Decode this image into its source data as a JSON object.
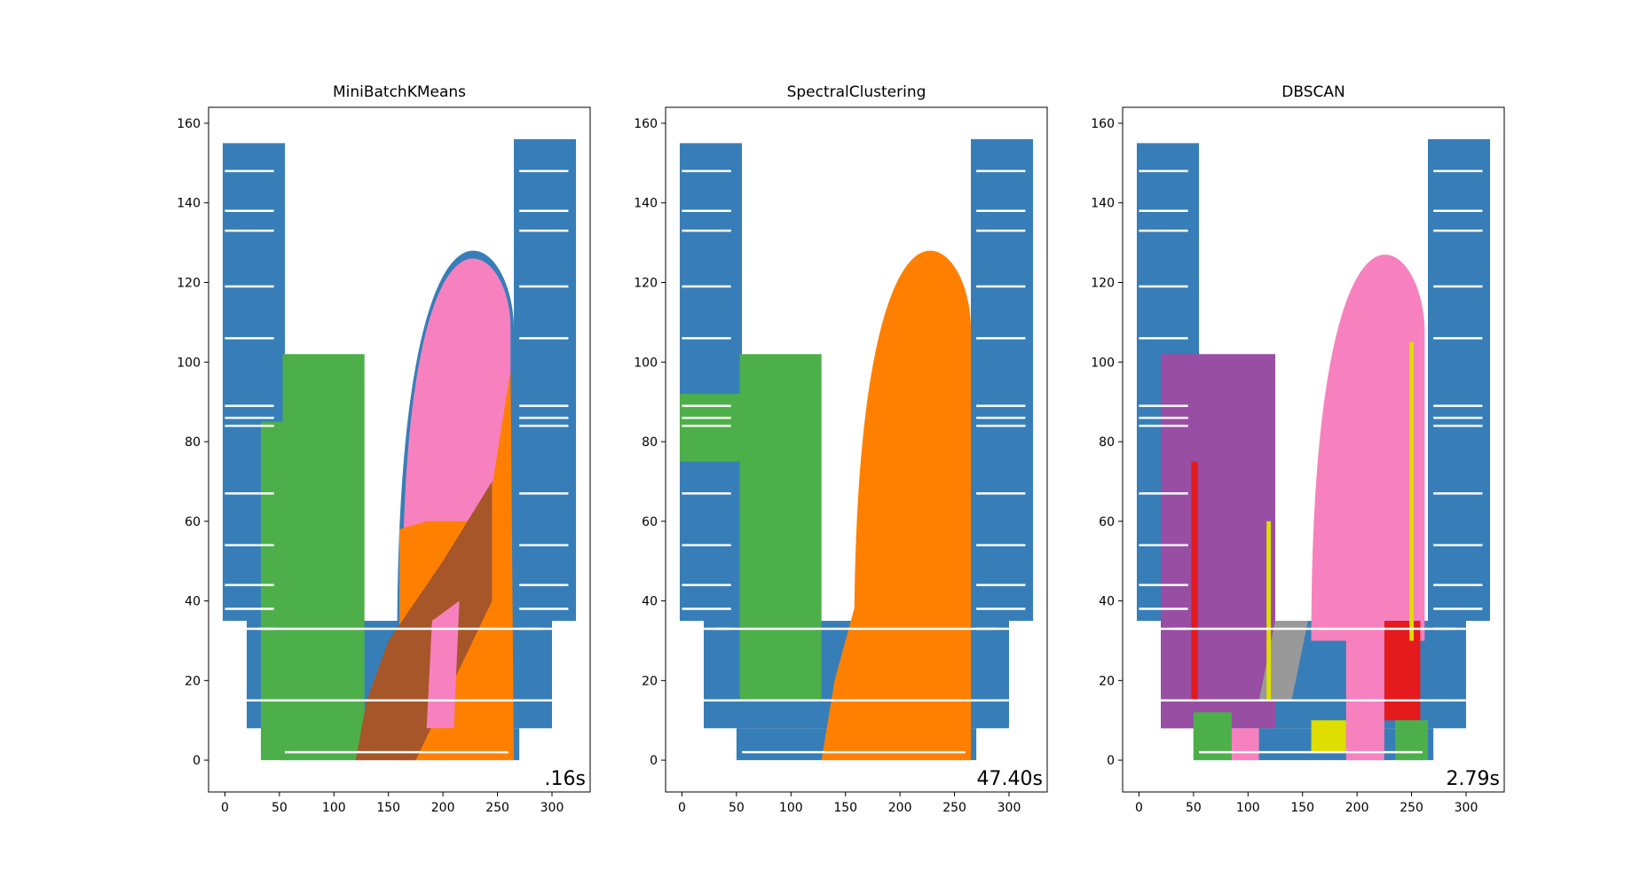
{
  "colors": {
    "blue": "#377eb8",
    "orange": "#ff7f00",
    "green": "#4daf4a",
    "pink": "#f781bf",
    "brown": "#a65628",
    "purple": "#984ea3",
    "gray": "#999999",
    "red": "#e41a1c",
    "yellow": "#dede00",
    "black": "#000000",
    "white": "#ffffff"
  },
  "chart_data": [
    {
      "type": "scatter",
      "title": "MiniBatchKMeans",
      "time_label": ".16s",
      "xlim": [
        -15,
        335
      ],
      "ylim": [
        -8,
        164
      ],
      "x_ticks": [
        0,
        50,
        100,
        150,
        200,
        250,
        300
      ],
      "y_ticks": [
        0,
        20,
        40,
        60,
        80,
        100,
        120,
        140,
        160
      ],
      "regions": [
        {
          "color": "blue",
          "kind": "rect",
          "x": [
            -2,
            55
          ],
          "y": [
            35,
            155
          ]
        },
        {
          "color": "blue",
          "kind": "rect",
          "x": [
            265,
            322
          ],
          "y": [
            35,
            156
          ]
        },
        {
          "color": "blue",
          "kind": "rect",
          "x": [
            20,
            300
          ],
          "y": [
            8,
            35
          ]
        },
        {
          "color": "blue",
          "kind": "rect",
          "x": [
            50,
            270
          ],
          "y": [
            0,
            8
          ]
        },
        {
          "color": "blue",
          "kind": "arch",
          "x": [
            158,
            265
          ],
          "y": [
            30,
            128
          ]
        },
        {
          "color": "green",
          "kind": "rect",
          "x": [
            53,
            128
          ],
          "y": [
            0,
            102
          ]
        },
        {
          "color": "green",
          "kind": "rect",
          "x": [
            33,
            53
          ],
          "y": [
            0,
            85
          ]
        },
        {
          "color": "pink",
          "kind": "arch",
          "x": [
            163,
            262
          ],
          "y": [
            40,
            126
          ]
        },
        {
          "color": "orange",
          "kind": "poly",
          "points": [
            [
              160,
              0
            ],
            [
              265,
              0
            ],
            [
              262,
              98
            ],
            [
              240,
              60
            ],
            [
              185,
              60
            ],
            [
              160,
              58
            ]
          ]
        },
        {
          "color": "brown",
          "kind": "poly",
          "points": [
            [
              120,
              0
            ],
            [
              175,
              0
            ],
            [
              245,
              40
            ],
            [
              245,
              70
            ],
            [
              200,
              50
            ],
            [
              150,
              30
            ],
            [
              130,
              15
            ]
          ]
        },
        {
          "color": "pink",
          "kind": "poly",
          "points": [
            [
              185,
              8
            ],
            [
              210,
              8
            ],
            [
              215,
              40
            ],
            [
              190,
              35
            ]
          ]
        }
      ]
    },
    {
      "type": "scatter",
      "title": "SpectralClustering",
      "time_label": "47.40s",
      "xlim": [
        -15,
        335
      ],
      "ylim": [
        -8,
        164
      ],
      "x_ticks": [
        0,
        50,
        100,
        150,
        200,
        250,
        300
      ],
      "y_ticks": [
        0,
        20,
        40,
        60,
        80,
        100,
        120,
        140,
        160
      ],
      "regions": [
        {
          "color": "blue",
          "kind": "rect",
          "x": [
            -2,
            55
          ],
          "y": [
            35,
            155
          ]
        },
        {
          "color": "blue",
          "kind": "rect",
          "x": [
            265,
            322
          ],
          "y": [
            35,
            156
          ]
        },
        {
          "color": "blue",
          "kind": "rect",
          "x": [
            20,
            300
          ],
          "y": [
            8,
            35
          ]
        },
        {
          "color": "blue",
          "kind": "rect",
          "x": [
            50,
            270
          ],
          "y": [
            0,
            8
          ]
        },
        {
          "color": "green",
          "kind": "rect",
          "x": [
            53,
            128
          ],
          "y": [
            15,
            102
          ]
        },
        {
          "color": "green",
          "kind": "rect",
          "x": [
            -2,
            53
          ],
          "y": [
            75,
            92
          ]
        },
        {
          "color": "orange",
          "kind": "arch",
          "x": [
            158,
            265
          ],
          "y": [
            30,
            128
          ]
        },
        {
          "color": "orange",
          "kind": "poly",
          "points": [
            [
              128,
              0
            ],
            [
              265,
              0
            ],
            [
              265,
              40
            ],
            [
              160,
              40
            ],
            [
              140,
              20
            ]
          ]
        }
      ]
    },
    {
      "type": "scatter",
      "title": "DBSCAN",
      "time_label": "2.79s",
      "xlim": [
        -15,
        335
      ],
      "ylim": [
        -8,
        164
      ],
      "x_ticks": [
        0,
        50,
        100,
        150,
        200,
        250,
        300
      ],
      "y_ticks": [
        0,
        20,
        40,
        60,
        80,
        100,
        120,
        140,
        160
      ],
      "regions": [
        {
          "color": "blue",
          "kind": "rect",
          "x": [
            -2,
            55
          ],
          "y": [
            35,
            155
          ]
        },
        {
          "color": "blue",
          "kind": "rect",
          "x": [
            265,
            322
          ],
          "y": [
            35,
            156
          ]
        },
        {
          "color": "blue",
          "kind": "rect",
          "x": [
            20,
            300
          ],
          "y": [
            8,
            35
          ]
        },
        {
          "color": "blue",
          "kind": "rect",
          "x": [
            50,
            270
          ],
          "y": [
            0,
            8
          ]
        },
        {
          "color": "purple",
          "kind": "rect",
          "x": [
            20,
            125
          ],
          "y": [
            8,
            102
          ]
        },
        {
          "color": "red",
          "kind": "rect",
          "x": [
            48,
            54
          ],
          "y": [
            15,
            75
          ]
        },
        {
          "color": "pink",
          "kind": "arch",
          "x": [
            158,
            262
          ],
          "y": [
            30,
            127
          ]
        },
        {
          "color": "gray",
          "kind": "poly",
          "points": [
            [
              110,
              15
            ],
            [
              140,
              15
            ],
            [
              155,
              35
            ],
            [
              125,
              35
            ]
          ]
        },
        {
          "color": "green",
          "kind": "rect",
          "x": [
            50,
            85
          ],
          "y": [
            0,
            12
          ]
        },
        {
          "color": "pink",
          "kind": "rect",
          "x": [
            85,
            110
          ],
          "y": [
            0,
            8
          ]
        },
        {
          "color": "yellow",
          "kind": "rect",
          "x": [
            158,
            190
          ],
          "y": [
            2,
            10
          ]
        },
        {
          "color": "red",
          "kind": "rect",
          "x": [
            225,
            258
          ],
          "y": [
            10,
            35
          ]
        },
        {
          "color": "green",
          "kind": "rect",
          "x": [
            235,
            265
          ],
          "y": [
            0,
            10
          ]
        },
        {
          "color": "pink",
          "kind": "rect",
          "x": [
            190,
            225
          ],
          "y": [
            0,
            35
          ]
        },
        {
          "color": "yellow",
          "kind": "rect",
          "x": [
            248,
            252
          ],
          "y": [
            30,
            105
          ]
        },
        {
          "color": "yellow",
          "kind": "rect",
          "x": [
            117,
            121
          ],
          "y": [
            15,
            60
          ]
        }
      ]
    }
  ]
}
